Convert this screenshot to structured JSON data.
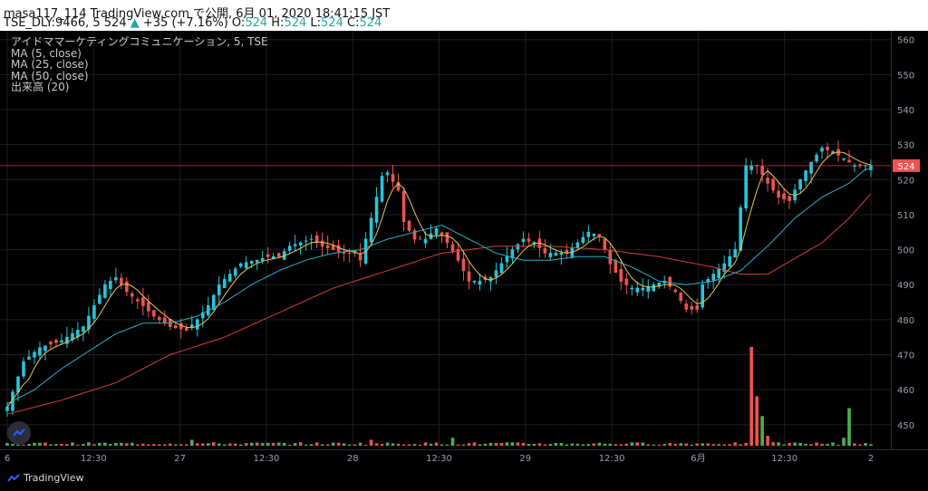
{
  "header": {
    "title_line": "masa117_114 TradingView.com で公開, 6月 01, 2020 18:41:15 JST",
    "symbol_prefix": "TSE_DLY:9466, 5 524",
    "arrow": "▲",
    "change": "+35 (+7.16%)",
    "o_label": "O:",
    "o_value": "524",
    "h_label": "H:",
    "h_value": "524",
    "l_label": "L:",
    "l_value": "524",
    "c_label": "C:",
    "c_value": "524"
  },
  "legend": {
    "symbol_line": "アイドママーケティングコミュニケーション, 5, TSE",
    "ma5": "MA (5, close)",
    "ma25": "MA (25, close)",
    "ma50": "MA (50, close)",
    "volume": "出来高 (20)"
  },
  "brand": {
    "name": "TradingView"
  },
  "colors": {
    "background": "#000000",
    "up": "#26c6da",
    "down": "#ef5350",
    "ma5": "#e6c84a",
    "ma25": "#26b0c8",
    "ma50": "#d2403a",
    "vol_up": "#4caf50",
    "vol_down": "#ef5350",
    "grid": "#1c1f26"
  },
  "chart_data": {
    "type": "candlestick",
    "y_axis": {
      "min": 444,
      "max": 562,
      "ticks": [
        "560",
        "550",
        "540",
        "530",
        "520",
        "510",
        "500",
        "490",
        "480",
        "470",
        "460",
        "450"
      ]
    },
    "x_axis_labels": [
      "6",
      "12:30",
      "27",
      "12:30",
      "28",
      "12:30",
      "29",
      "12:30",
      "6月",
      "12:30",
      "2"
    ],
    "current_price": "524",
    "price_path": [
      [
        0,
        455
      ],
      [
        3,
        468
      ],
      [
        6,
        472
      ],
      [
        10,
        474
      ],
      [
        14,
        478
      ],
      [
        18,
        490
      ],
      [
        20,
        492
      ],
      [
        22,
        488
      ],
      [
        25,
        484
      ],
      [
        27,
        481
      ],
      [
        30,
        478
      ],
      [
        33,
        477
      ],
      [
        35,
        480
      ],
      [
        37,
        484
      ],
      [
        39,
        490
      ],
      [
        41,
        493
      ],
      [
        43,
        496
      ],
      [
        46,
        497
      ],
      [
        48,
        498
      ],
      [
        50,
        498
      ],
      [
        52,
        501
      ],
      [
        54,
        502
      ],
      [
        56,
        503
      ],
      [
        58,
        501
      ],
      [
        60,
        500
      ],
      [
        62,
        499
      ],
      [
        64,
        499
      ],
      [
        65,
        497
      ],
      [
        67,
        509
      ],
      [
        69,
        521
      ],
      [
        70,
        522
      ],
      [
        72,
        517
      ],
      [
        73,
        508
      ],
      [
        75,
        503
      ],
      [
        77,
        503
      ],
      [
        79,
        506
      ],
      [
        81,
        502
      ],
      [
        83,
        497
      ],
      [
        85,
        491
      ],
      [
        87,
        491
      ],
      [
        89,
        492
      ],
      [
        91,
        496
      ],
      [
        93,
        500
      ],
      [
        95,
        503
      ],
      [
        97,
        502
      ],
      [
        99,
        499
      ],
      [
        101,
        499
      ],
      [
        103,
        499
      ],
      [
        105,
        502
      ],
      [
        107,
        505
      ],
      [
        109,
        504
      ],
      [
        111,
        496
      ],
      [
        113,
        491
      ],
      [
        115,
        489
      ],
      [
        117,
        489
      ],
      [
        119,
        490
      ],
      [
        121,
        491
      ],
      [
        123,
        488
      ],
      [
        125,
        483
      ],
      [
        127,
        483
      ],
      [
        128,
        490
      ],
      [
        130,
        493
      ],
      [
        132,
        496
      ],
      [
        134,
        500
      ],
      [
        136,
        524
      ],
      [
        138,
        524
      ],
      [
        140,
        519
      ],
      [
        142,
        515
      ],
      [
        144,
        514
      ],
      [
        146,
        520
      ],
      [
        148,
        525
      ],
      [
        150,
        529
      ],
      [
        152,
        528
      ],
      [
        154,
        526
      ],
      [
        156,
        524
      ],
      [
        158,
        524
      ]
    ],
    "ma25_path": [
      [
        0,
        456
      ],
      [
        5,
        460
      ],
      [
        10,
        466
      ],
      [
        15,
        471
      ],
      [
        20,
        476
      ],
      [
        25,
        479
      ],
      [
        30,
        479
      ],
      [
        35,
        481
      ],
      [
        40,
        485
      ],
      [
        45,
        490
      ],
      [
        50,
        494
      ],
      [
        55,
        497
      ],
      [
        60,
        499
      ],
      [
        65,
        500
      ],
      [
        70,
        503
      ],
      [
        75,
        505
      ],
      [
        80,
        507
      ],
      [
        85,
        503
      ],
      [
        90,
        499
      ],
      [
        95,
        497
      ],
      [
        100,
        497
      ],
      [
        105,
        498
      ],
      [
        110,
        498
      ],
      [
        115,
        495
      ],
      [
        120,
        491
      ],
      [
        125,
        490
      ],
      [
        130,
        491
      ],
      [
        135,
        494
      ],
      [
        140,
        501
      ],
      [
        145,
        509
      ],
      [
        150,
        515
      ],
      [
        155,
        519
      ],
      [
        158,
        523
      ]
    ],
    "ma50_path": [
      [
        0,
        453
      ],
      [
        5,
        455
      ],
      [
        10,
        457
      ],
      [
        20,
        462
      ],
      [
        30,
        470
      ],
      [
        40,
        475
      ],
      [
        50,
        482
      ],
      [
        60,
        489
      ],
      [
        70,
        494
      ],
      [
        80,
        499
      ],
      [
        90,
        501
      ],
      [
        100,
        501
      ],
      [
        110,
        500
      ],
      [
        120,
        498
      ],
      [
        130,
        495
      ],
      [
        135,
        493
      ],
      [
        140,
        493
      ],
      [
        150,
        502
      ],
      [
        155,
        509
      ],
      [
        159,
        516
      ]
    ],
    "volume_spikes": [
      {
        "bar": 137,
        "value": 100,
        "dir": "down"
      },
      {
        "bar": 138,
        "value": 50,
        "dir": "down"
      },
      {
        "bar": 139,
        "value": 30,
        "dir": "up"
      },
      {
        "bar": 140,
        "value": 10,
        "dir": "down"
      },
      {
        "bar": 155,
        "value": 38,
        "dir": "up"
      },
      {
        "bar": 154,
        "value": 8,
        "dir": "up"
      },
      {
        "bar": 34,
        "value": 6,
        "dir": "up"
      },
      {
        "bar": 82,
        "value": 8,
        "dir": "up"
      },
      {
        "bar": 67,
        "value": 6,
        "dir": "down"
      }
    ],
    "volume_max": 110
  }
}
